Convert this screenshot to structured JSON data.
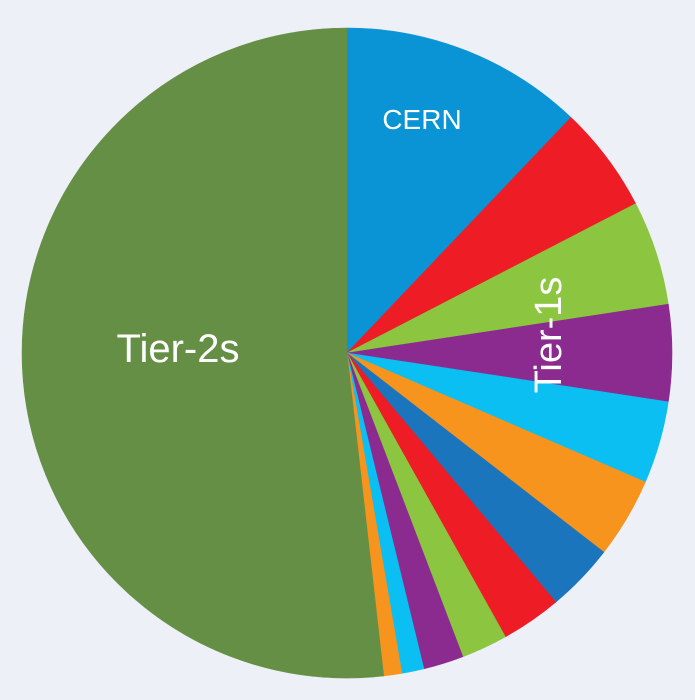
{
  "chart_data": {
    "type": "pie",
    "start_angle_deg": 0,
    "direction": "clockwise",
    "start_position": "top",
    "labels": [
      {
        "text": "CERN",
        "slices": [
          0
        ]
      },
      {
        "text": "Tier-1s",
        "slices": [
          1,
          2,
          3,
          4,
          5,
          6,
          7,
          8,
          9,
          10,
          11,
          12
        ]
      },
      {
        "text": "Tier-2s",
        "slices": [
          13
        ]
      }
    ],
    "slices": [
      {
        "value": 12.1,
        "color": "#0a94d6"
      },
      {
        "value": 5.3,
        "color": "#ee1c25"
      },
      {
        "value": 5.2,
        "color": "#8cc540"
      },
      {
        "value": 4.8,
        "color": "#8b2b8f"
      },
      {
        "value": 4.1,
        "color": "#0bbff2"
      },
      {
        "value": 4.0,
        "color": "#f7941d"
      },
      {
        "value": 3.4,
        "color": "#1b75bc"
      },
      {
        "value": 3.0,
        "color": "#ee1c25"
      },
      {
        "value": 2.3,
        "color": "#8cc540"
      },
      {
        "value": 2.0,
        "color": "#8b2b8f"
      },
      {
        "value": 1.1,
        "color": "#0bbff2"
      },
      {
        "value": 0.9,
        "color": "#f7941d"
      },
      {
        "value": 0.5,
        "color": "#648f45"
      },
      {
        "value": 51.3,
        "color": "#648f45"
      }
    ]
  }
}
